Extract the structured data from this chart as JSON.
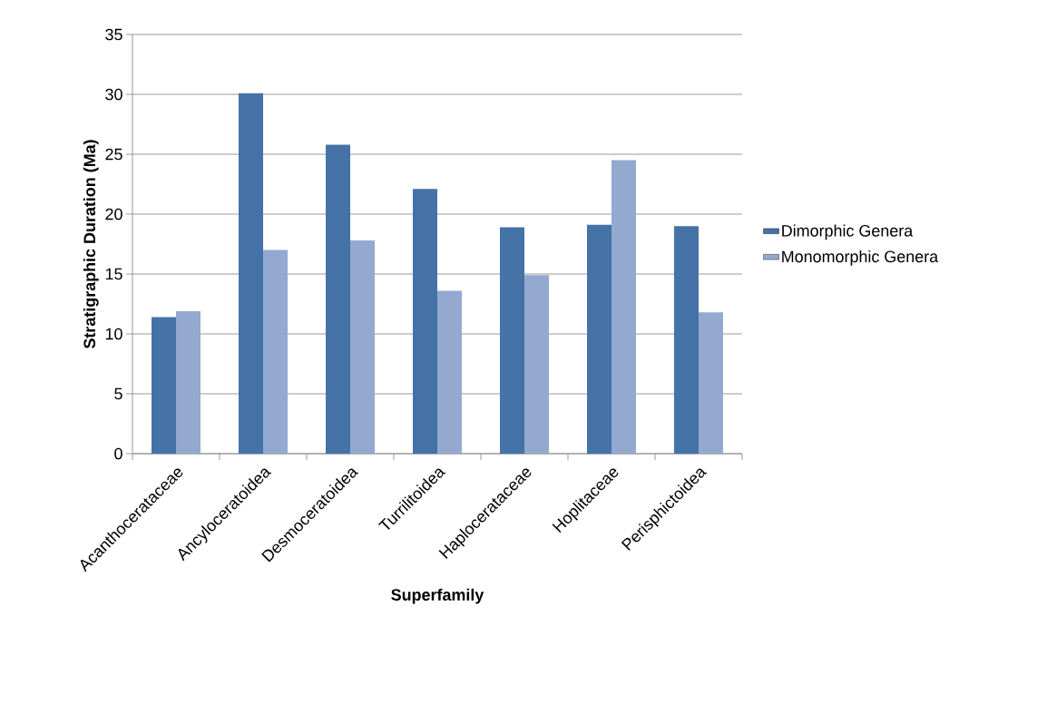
{
  "chart_data": {
    "type": "bar",
    "xlabel": "Superfamily",
    "ylabel": "Stratigraphic Duration (Ma)",
    "categories": [
      "Acanthocerataceae",
      "Ancyloceratoidea",
      "Desmoceratoidea",
      "Turrilitoidea",
      "Haplocerataceae",
      "Hoplitaceae",
      "Perisphictoidea"
    ],
    "series": [
      {
        "name": "Dimorphic Genera",
        "color": "#4572a7",
        "values": [
          11.4,
          30.1,
          25.8,
          22.1,
          18.9,
          19.1,
          19.0
        ]
      },
      {
        "name": "Monomorphic Genera",
        "color": "#93a9cf",
        "values": [
          11.9,
          17.0,
          17.8,
          13.6,
          14.9,
          24.5,
          11.8
        ]
      }
    ],
    "ylim": [
      0,
      35
    ],
    "yticks": [
      0,
      5,
      10,
      15,
      20,
      25,
      30,
      35
    ],
    "grid": "y",
    "legend": "right"
  }
}
